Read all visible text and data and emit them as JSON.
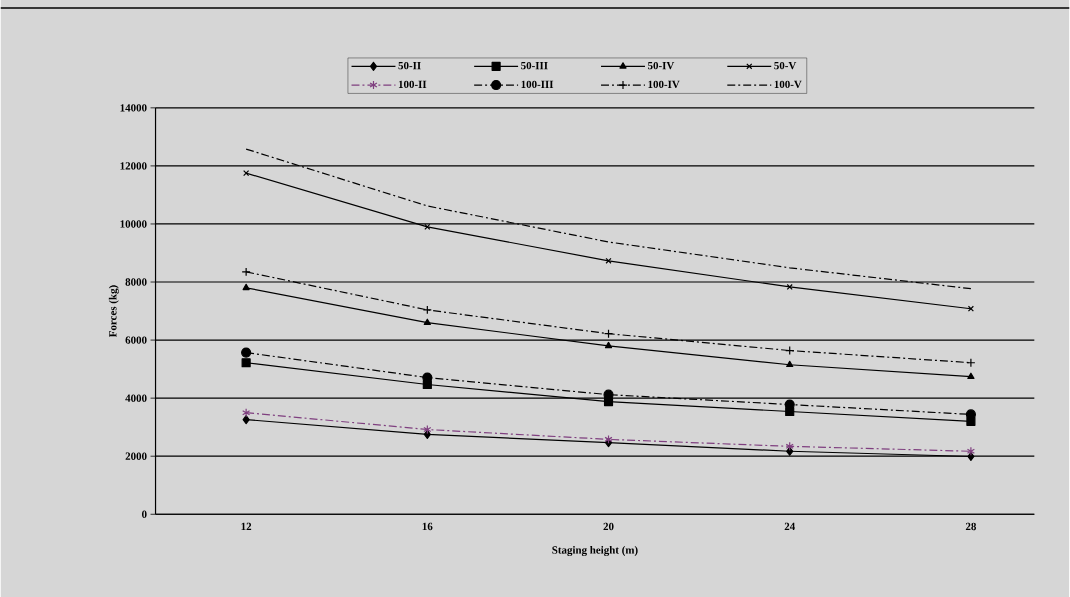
{
  "chart_data": {
    "type": "line",
    "xlabel": "Staging height (m)",
    "ylabel": "Forces (kg)",
    "categories": [
      "12",
      "16",
      "20",
      "24",
      "28"
    ],
    "ylim": [
      0,
      14000
    ],
    "yticks": [
      0,
      2000,
      4000,
      6000,
      8000,
      10000,
      12000,
      14000
    ],
    "grid": "y",
    "legend": "top",
    "series": [
      {
        "name": "50-II",
        "color": "#000000",
        "marker": "diamond",
        "line_style": "solid",
        "values": [
          3260,
          2750,
          2470,
          2170,
          1990
        ]
      },
      {
        "name": "50-III",
        "color": "#000000",
        "marker": "square",
        "line_style": "solid",
        "values": [
          5220,
          4470,
          3880,
          3540,
          3200
        ]
      },
      {
        "name": "50-IV",
        "color": "#000000",
        "marker": "triangle",
        "line_style": "solid",
        "values": [
          7800,
          6600,
          5800,
          5150,
          4740
        ]
      },
      {
        "name": "50-V",
        "color": "#000000",
        "marker": "cross",
        "line_style": "solid",
        "values": [
          11750,
          9900,
          8730,
          7830,
          7080
        ]
      },
      {
        "name": "100-II",
        "color": "#7f3f7f",
        "marker": "cross",
        "line_style": "dashdot",
        "values": [
          3500,
          2920,
          2580,
          2340,
          2170
        ]
      },
      {
        "name": "100-III",
        "color": "#000000",
        "marker": "circle",
        "line_style": "dashdot",
        "values": [
          5570,
          4710,
          4120,
          3780,
          3440
        ]
      },
      {
        "name": "100-IV",
        "color": "#000000",
        "marker": "plus",
        "line_style": "dashdot",
        "values": [
          8350,
          7040,
          6220,
          5640,
          5220
        ]
      },
      {
        "name": "100-V",
        "color": "#000000",
        "marker": "none",
        "line_style": "dashdot",
        "values": [
          12580,
          10620,
          9380,
          8490,
          7770
        ]
      }
    ]
  }
}
